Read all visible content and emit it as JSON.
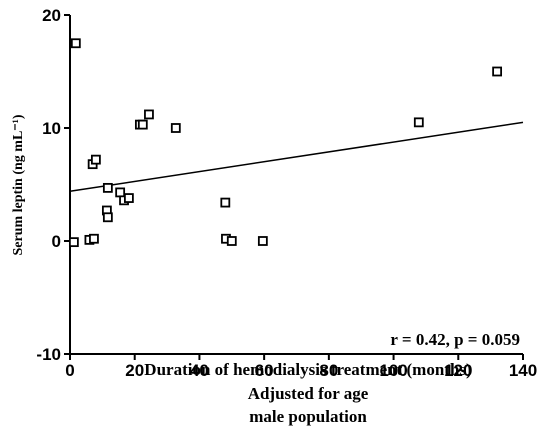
{
  "chart_data": {
    "type": "scatter",
    "x_label": [
      "Duration of hemodialysis treatment (months)",
      "Adjusted for age",
      "male population"
    ],
    "y_label": "Serum leptin (ng mL⁻¹)",
    "annotation": "r = 0.42, p = 0.059",
    "x": [
      1.8,
      1.2,
      6,
      7.4,
      7,
      8,
      11.7,
      11.4,
      11.7,
      15.5,
      16.7,
      18.2,
      21.6,
      22.5,
      24.4,
      32.7,
      48,
      48.2,
      50,
      59.6,
      107.8,
      132
    ],
    "values": [
      17.5,
      -0.1,
      0.1,
      0.2,
      6.8,
      7.2,
      4.7,
      2.7,
      2.1,
      4.3,
      3.6,
      3.8,
      10.3,
      10.3,
      11.2,
      10,
      3.4,
      0.2,
      0,
      0,
      10.5,
      15
    ],
    "fit_line": {
      "x": [
        0,
        140
      ],
      "y": [
        4.4,
        10.5
      ]
    },
    "xlim": [
      0,
      140
    ],
    "xticks": [
      0,
      20,
      40,
      60,
      80,
      100,
      120,
      140
    ],
    "ylim": [
      -10,
      20
    ],
    "yticks": [
      -10,
      0,
      10,
      20
    ]
  }
}
